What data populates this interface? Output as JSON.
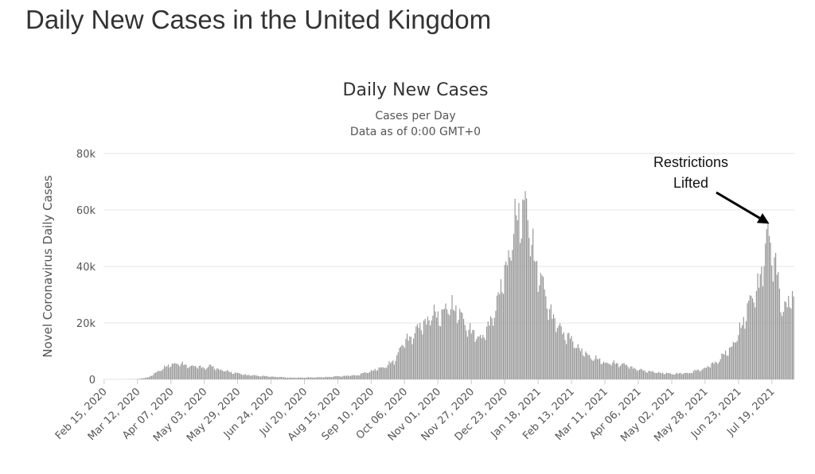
{
  "page_title": "Daily New Cases in the United Kingdom",
  "colors": {
    "bar": "#969696",
    "grid": "#e6e6e6",
    "text": "#333333",
    "annotation": "#000000"
  },
  "chart_data": {
    "type": "bar",
    "title": "Daily New Cases",
    "subtitle": [
      "Cases per Day",
      "Data as of 0:00 GMT+0"
    ],
    "xlabel": "",
    "ylabel": "Novel Coronavirus Daily Cases",
    "ylim": [
      0,
      80000
    ],
    "yticks": [
      0,
      20000,
      40000,
      60000,
      80000
    ],
    "ytick_labels": [
      "0",
      "20k",
      "40k",
      "60k",
      "80k"
    ],
    "grid": true,
    "x_start": "Feb 15, 2020",
    "x_end": "Aug 05, 2021",
    "x_tick_labels": [
      "Feb 15, 2020",
      "Mar 12, 2020",
      "Apr 07, 2020",
      "May 03, 2020",
      "May 29, 2020",
      "Jun 24, 2020",
      "Jul 20, 2020",
      "Aug 15, 2020",
      "Sep 10, 2020",
      "Oct 06, 2020",
      "Nov 01, 2020",
      "Nov 27, 2020",
      "Dec 23, 2020",
      "Jan 18, 2021",
      "Feb 13, 2021",
      "Mar 11, 2021",
      "Apr 06, 2021",
      "May 02, 2021",
      "May 28, 2021",
      "Jun 23, 2021",
      "Jul 19, 2021"
    ],
    "series_anchors": [
      [
        "Feb 15, 2020",
        0
      ],
      [
        "Mar 01, 2020",
        10
      ],
      [
        "Mar 12, 2020",
        100
      ],
      [
        "Mar 20, 2020",
        700
      ],
      [
        "Mar 27, 2020",
        2500
      ],
      [
        "Apr 02, 2020",
        4400
      ],
      [
        "Apr 08, 2020",
        5300
      ],
      [
        "Apr 12, 2020",
        6000
      ],
      [
        "Apr 18, 2020",
        5000
      ],
      [
        "Apr 25, 2020",
        4800
      ],
      [
        "May 03, 2020",
        4200
      ],
      [
        "May 08, 2020",
        4800
      ],
      [
        "May 15, 2020",
        3500
      ],
      [
        "May 25, 2020",
        2500
      ],
      [
        "Jun 05, 2020",
        1600
      ],
      [
        "Jun 24, 2020",
        1000
      ],
      [
        "Jul 10, 2020",
        600
      ],
      [
        "Jul 20, 2020",
        650
      ],
      [
        "Aug 05, 2020",
        800
      ],
      [
        "Aug 15, 2020",
        1100
      ],
      [
        "Aug 30, 2020",
        1500
      ],
      [
        "Sep 10, 2020",
        3000
      ],
      [
        "Sep 20, 2020",
        4500
      ],
      [
        "Sep 28, 2020",
        6500
      ],
      [
        "Oct 03, 2020",
        12000
      ],
      [
        "Oct 10, 2020",
        15000
      ],
      [
        "Oct 20, 2020",
        20000
      ],
      [
        "Oct 28, 2020",
        23000
      ],
      [
        "Nov 05, 2020",
        24000
      ],
      [
        "Nov 12, 2020",
        27000
      ],
      [
        "Nov 20, 2020",
        22000
      ],
      [
        "Nov 27, 2020",
        17000
      ],
      [
        "Dec 03, 2020",
        15000
      ],
      [
        "Dec 10, 2020",
        18000
      ],
      [
        "Dec 17, 2020",
        28000
      ],
      [
        "Dec 23, 2020",
        38000
      ],
      [
        "Dec 29, 2020",
        52000
      ],
      [
        "Jan 04, 2021",
        60000
      ],
      [
        "Jan 08, 2021",
        66000
      ],
      [
        "Jan 12, 2021",
        50000
      ],
      [
        "Jan 18, 2021",
        40000
      ],
      [
        "Jan 25, 2021",
        28000
      ],
      [
        "Feb 01, 2021",
        20000
      ],
      [
        "Feb 13, 2021",
        14000
      ],
      [
        "Feb 24, 2021",
        9000
      ],
      [
        "Mar 11, 2021",
        6000
      ],
      [
        "Mar 25, 2021",
        5500
      ],
      [
        "Apr 06, 2021",
        3500
      ],
      [
        "Apr 20, 2021",
        2500
      ],
      [
        "May 02, 2021",
        2000
      ],
      [
        "May 15, 2021",
        2300
      ],
      [
        "May 28, 2021",
        4000
      ],
      [
        "Jun 08, 2021",
        7000
      ],
      [
        "Jun 18, 2021",
        12000
      ],
      [
        "Jun 23, 2021",
        16000
      ],
      [
        "Jun 30, 2021",
        26000
      ],
      [
        "Jul 05, 2021",
        30000
      ],
      [
        "Jul 12, 2021",
        40000
      ],
      [
        "Jul 15, 2021",
        50000
      ],
      [
        "Jul 17, 2021",
        54000
      ],
      [
        "Jul 19, 2021",
        47000
      ],
      [
        "Jul 23, 2021",
        38000
      ],
      [
        "Jul 27, 2021",
        25000
      ],
      [
        "Jul 31, 2021",
        28000
      ],
      [
        "Aug 03, 2021",
        30000
      ],
      [
        "Aug 05, 2021",
        27000
      ]
    ],
    "annotations": [
      {
        "text_line1": "Restrictions",
        "text_line2": "Lifted",
        "x": "Jul 17, 2021",
        "y": 54000
      }
    ]
  }
}
